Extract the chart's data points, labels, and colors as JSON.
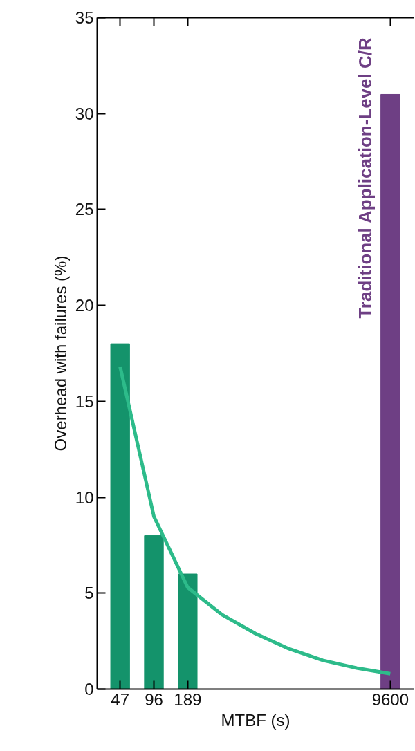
{
  "chart_data": {
    "type": "bar",
    "xlabel": "MTBF (s)",
    "ylabel": "Overhead with failures (%)",
    "categories": [
      "47",
      "96",
      "189",
      null,
      null,
      null,
      null,
      null,
      "9600"
    ],
    "ylim": [
      0,
      35
    ],
    "yticks": [
      0,
      5,
      10,
      15,
      20,
      25,
      30,
      35
    ],
    "grid": false,
    "series": [
      {
        "color": "#14936b",
        "values": [
          18,
          8,
          6,
          null,
          null,
          null,
          null,
          null,
          null
        ]
      },
      {
        "name": "Traditional Application-Level C/R",
        "color": "#6e3f84",
        "values": [
          null,
          null,
          null,
          null,
          null,
          null,
          null,
          null,
          31
        ]
      },
      {
        "type": "line",
        "color": "#2dbb8a",
        "values": [
          16.8,
          9.0,
          5.3,
          3.9,
          2.9,
          2.1,
          1.5,
          1.1,
          0.8
        ]
      }
    ]
  }
}
